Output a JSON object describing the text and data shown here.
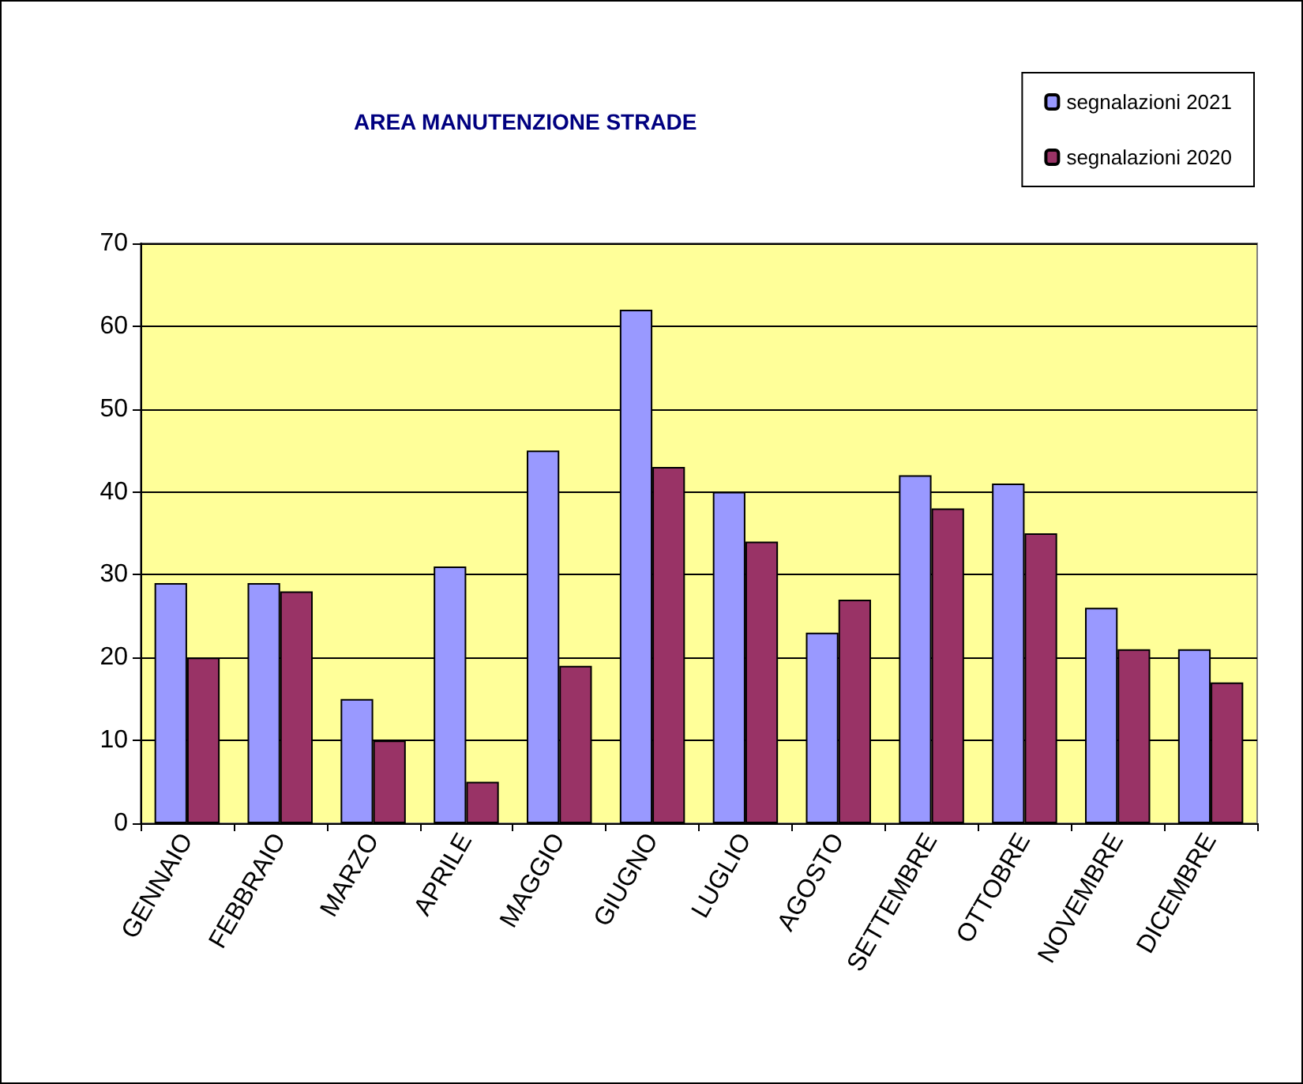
{
  "chart_data": {
    "type": "bar",
    "title": "AREA MANUTENZIONE STRADE",
    "categories": [
      "GENNAIO",
      "FEBBRAIO",
      "MARZO",
      "APRILE",
      "MAGGIO",
      "GIUGNO",
      "LUGLIO",
      "AGOSTO",
      "SETTEMBRE",
      "OTTOBRE",
      "NOVEMBRE",
      "DICEMBRE"
    ],
    "series": [
      {
        "name": "segnalazioni 2021",
        "color": "#9999ff",
        "values": [
          29,
          29,
          15,
          31,
          45,
          62,
          40,
          23,
          42,
          41,
          26,
          21
        ]
      },
      {
        "name": "segnalazioni 2020",
        "color": "#993366",
        "values": [
          20,
          28,
          10,
          5,
          19,
          43,
          34,
          27,
          38,
          35,
          21,
          17
        ]
      }
    ],
    "ylim": [
      0,
      70
    ],
    "yticks": [
      0,
      10,
      20,
      30,
      40,
      50,
      60,
      70
    ],
    "grid": "y",
    "legend": "top right"
  }
}
